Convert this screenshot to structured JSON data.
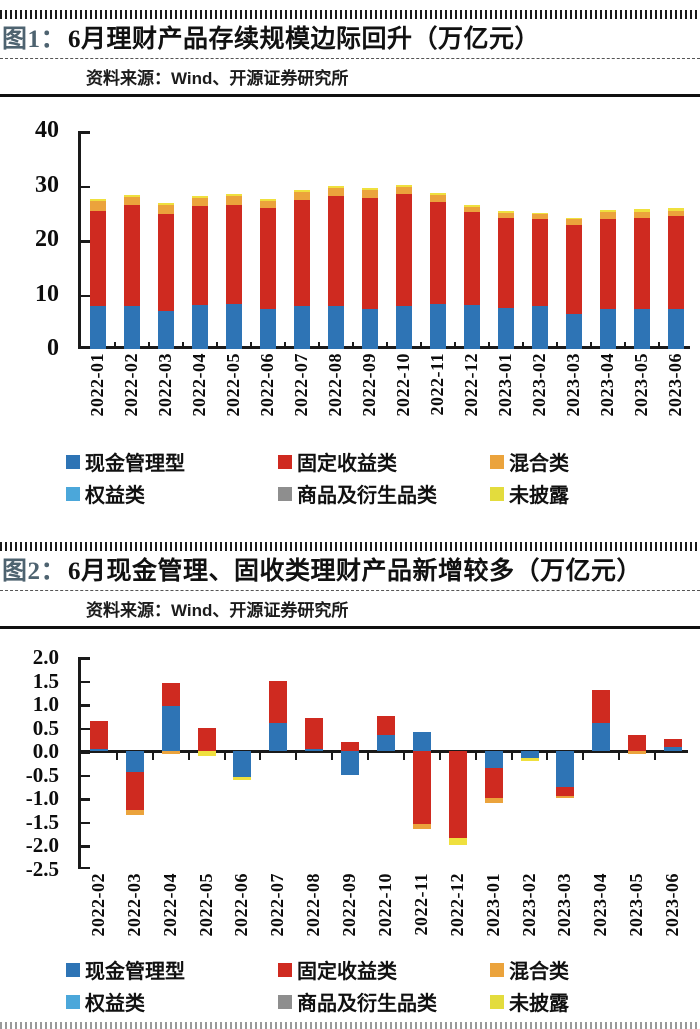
{
  "figure1": {
    "label": "图1：",
    "title": "6月理财产品存续规模边际回升（万亿元）",
    "source": "资料来源：Wind、开源证券研究所"
  },
  "figure2": {
    "label": "图2：",
    "title": "6月现金管理、固收类理财产品新增较多（万亿元）",
    "source": "资料来源：Wind、开源证券研究所"
  },
  "legend": {
    "items": [
      {
        "name": "现金管理型",
        "color": "#2E74B5"
      },
      {
        "name": "固定收益类",
        "color": "#CF2A20"
      },
      {
        "name": "混合类",
        "color": "#EBA33C"
      },
      {
        "name": "权益类",
        "color": "#4BA7DA"
      },
      {
        "name": "商品及衍生品类",
        "color": "#8E8E8E"
      },
      {
        "name": "未披露",
        "color": "#E3DC3D"
      }
    ]
  },
  "colors": {
    "axis": "#1a1a1a",
    "figure_label": "#4e6370"
  },
  "chart_data": [
    {
      "type": "bar",
      "stacked": true,
      "title": "6月理财产品存续规模边际回升（万亿元）",
      "ylabel": "万亿元",
      "xlabel": "",
      "ylim": [
        0,
        40
      ],
      "yticks": [
        0,
        10,
        20,
        30,
        40
      ],
      "ytick_decimals": 0,
      "grid": false,
      "legend_position": "bottom",
      "legend_entries": [
        "现金管理型",
        "固定收益类",
        "混合类",
        "权益类",
        "商品及衍生品类",
        "未披露"
      ],
      "categories": [
        "2022-01",
        "2022-02",
        "2022-03",
        "2022-04",
        "2022-05",
        "2022-06",
        "2022-07",
        "2022-08",
        "2022-09",
        "2022-10",
        "2022-11",
        "2022-12",
        "2023-01",
        "2023-02",
        "2023-03",
        "2023-04",
        "2023-05",
        "2023-06"
      ],
      "series": [
        {
          "name": "现金管理型",
          "color": "#2E74B5",
          "values": [
            7.8,
            7.9,
            7.0,
            8.1,
            8.2,
            7.4,
            7.9,
            7.8,
            7.3,
            7.9,
            8.2,
            8.1,
            7.6,
            7.8,
            6.5,
            7.3,
            7.4,
            7.3
          ]
        },
        {
          "name": "固定收益类",
          "color": "#CF2A20",
          "values": [
            17.5,
            18.5,
            17.8,
            18.1,
            18.3,
            18.5,
            19.5,
            20.3,
            20.4,
            20.6,
            18.8,
            17.1,
            16.4,
            16.0,
            16.3,
            16.6,
            16.7,
            17.1
          ]
        },
        {
          "name": "混合类",
          "color": "#EBA33C",
          "values": [
            1.8,
            1.5,
            1.6,
            1.5,
            1.5,
            1.2,
            1.4,
            1.4,
            1.4,
            1.2,
            1.3,
            0.9,
            1.0,
            0.9,
            1.0,
            1.2,
            1.1,
            1.0
          ]
        },
        {
          "name": "未披露",
          "color": "#EFE03E",
          "values": [
            0.4,
            0.4,
            0.4,
            0.4,
            0.4,
            0.4,
            0.4,
            0.4,
            0.4,
            0.4,
            0.4,
            0.3,
            0.3,
            0.3,
            0.3,
            0.4,
            0.4,
            0.4
          ]
        }
      ]
    },
    {
      "type": "bar",
      "stacked": true,
      "title": "6月现金管理、固收类理财产品新增较多（万亿元）",
      "ylabel": "万亿元",
      "xlabel": "",
      "ylim": [
        -2.5,
        2.0
      ],
      "yticks": [
        2.0,
        1.5,
        1.0,
        0.5,
        0.0,
        -0.5,
        -1.0,
        -1.5,
        -2.0,
        -2.5
      ],
      "ytick_decimals": 1,
      "grid": false,
      "legend_position": "bottom",
      "legend_entries": [
        "现金管理型",
        "固定收益类",
        "混合类",
        "权益类",
        "商品及衍生品类",
        "未披露"
      ],
      "categories": [
        "2022-02",
        "2022-03",
        "2022-04",
        "2022-05",
        "2022-06",
        "2022-07",
        "2022-08",
        "2022-09",
        "2022-10",
        "2022-11",
        "2022-12",
        "2023-01",
        "2023-02",
        "2023-03",
        "2023-04",
        "2023-05",
        "2023-06"
      ],
      "series": [
        {
          "name": "现金管理型",
          "color": "#2E74B5",
          "values": [
            0.05,
            -0.45,
            0.95,
            0.0,
            -0.55,
            0.6,
            0.05,
            -0.5,
            0.35,
            0.4,
            0.0,
            -0.35,
            -0.15,
            -0.75,
            0.6,
            0.0,
            0.1
          ]
        },
        {
          "name": "固定收益类",
          "color": "#CF2A20",
          "values": [
            0.6,
            -0.8,
            0.5,
            0.5,
            0.0,
            0.9,
            0.65,
            0.2,
            0.4,
            -1.55,
            -1.85,
            -0.65,
            0.0,
            -0.2,
            0.7,
            0.35,
            0.15
          ]
        },
        {
          "name": "混合类",
          "color": "#EBA33C",
          "values": [
            0,
            -0.1,
            -0.05,
            0,
            0,
            0,
            0,
            0,
            0,
            -0.1,
            0,
            -0.1,
            0,
            -0.05,
            0,
            -0.05,
            0
          ]
        },
        {
          "name": "未披露",
          "color": "#EFE03E",
          "values": [
            0,
            0,
            0,
            -0.1,
            -0.07,
            0,
            0,
            0,
            0,
            0,
            -0.15,
            0,
            -0.05,
            0,
            0,
            0,
            0
          ]
        }
      ]
    }
  ]
}
